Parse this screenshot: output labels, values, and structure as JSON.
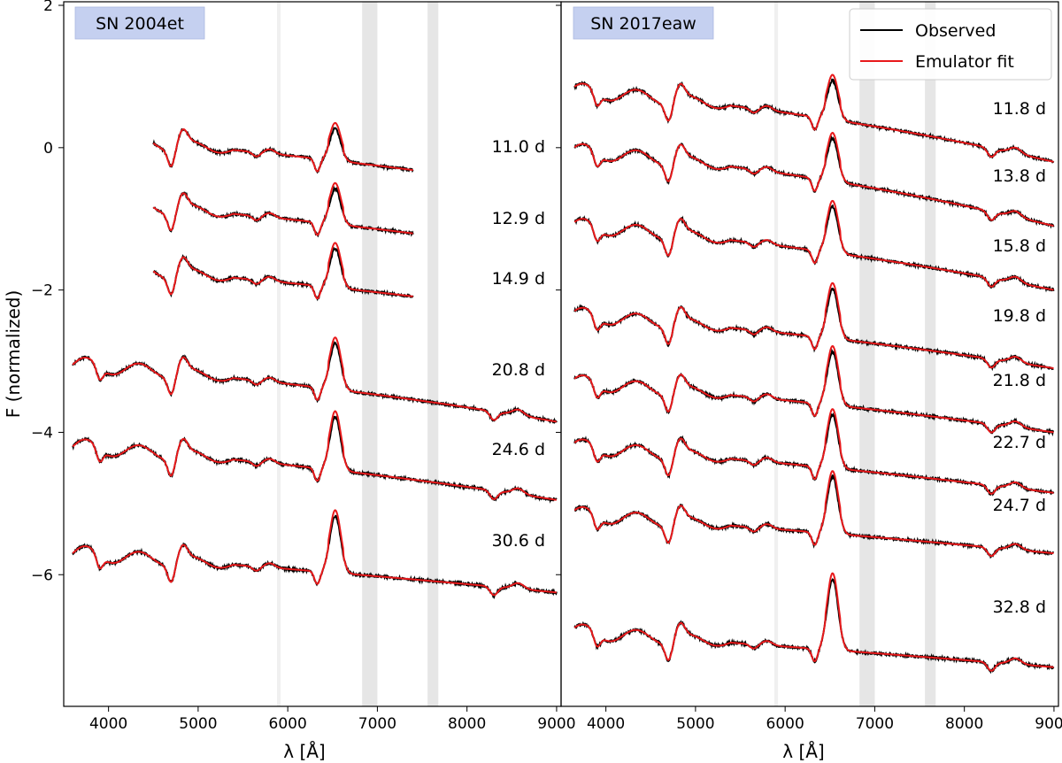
{
  "chart_data": {
    "type": "line",
    "ylabel": "F (normalized)",
    "y_tick_labels": [
      "2",
      "0",
      "−2",
      "−4",
      "−6"
    ],
    "y_tick_values": [
      2,
      0,
      -2,
      -4,
      -6
    ],
    "ylim": [
      -7.85,
      2.05
    ],
    "x_tick_labels": [
      "4000",
      "5000",
      "6000",
      "7000",
      "8000",
      "9000"
    ],
    "x_tick_values": [
      4000,
      5000,
      6000,
      7000,
      8000,
      9000
    ],
    "xlim": [
      3500,
      9050
    ],
    "xlabel_left": "λ [Å]",
    "xlabel_right": "λ [Å]",
    "telluric_bands": [
      [
        5880,
        5920
      ],
      [
        6830,
        7000
      ],
      [
        7560,
        7680
      ]
    ],
    "series": [
      {
        "name": "Observed",
        "color": "#000000"
      },
      {
        "name": "Emulator fit",
        "color": "#e8191b"
      }
    ],
    "legend": {
      "position": "top-right",
      "observed": "Observed",
      "emulator": "Emulator fit"
    },
    "panels": [
      {
        "name": "SN 2004et",
        "epochs": [
          {
            "label": "11.0 d",
            "offset": 0.0,
            "xmin": 4500,
            "xmax": 7400,
            "peak": 0.45,
            "tail": -0.25,
            "slope_end": -0.3
          },
          {
            "label": "12.9 d",
            "offset": -0.9,
            "xmin": 4500,
            "xmax": 7400,
            "peak": 0.5,
            "tail": -0.2,
            "slope_end": -0.28
          },
          {
            "label": "14.9 d",
            "offset": -1.8,
            "xmin": 4500,
            "xmax": 7400,
            "peak": 0.55,
            "tail": -0.2,
            "slope_end": -0.25
          },
          {
            "label": "20.8 d",
            "offset": -3.2,
            "xmin": 3600,
            "xmax": 9000,
            "peak": 0.65,
            "tail": -0.3,
            "slope_end": -0.35
          },
          {
            "label": "24.6 d",
            "offset": -4.35,
            "xmin": 3600,
            "xmax": 9000,
            "peak": 0.75,
            "tail": -0.2,
            "slope_end": -0.3
          },
          {
            "label": "30.6 d",
            "offset": -5.85,
            "xmin": 3600,
            "xmax": 9000,
            "peak": 0.8,
            "tail": 0.05,
            "slope_end": -0.1
          }
        ]
      },
      {
        "name": "SN 2017eaw",
        "epochs": [
          {
            "label": "11.8 d",
            "offset": 0.65,
            "xmin": 3650,
            "xmax": 9000,
            "peak": 0.55,
            "tail": -0.45,
            "slope_end": -0.55
          },
          {
            "label": "13.8 d",
            "offset": -0.2,
            "xmin": 3650,
            "xmax": 9000,
            "peak": 0.6,
            "tail": -0.55,
            "slope_end": -0.6
          },
          {
            "label": "15.8 d",
            "offset": -1.25,
            "xmin": 3650,
            "xmax": 9000,
            "peak": 0.65,
            "tail": -0.4,
            "slope_end": -0.45
          },
          {
            "label": "19.8 d",
            "offset": -2.5,
            "xmin": 3650,
            "xmax": 9000,
            "peak": 0.7,
            "tail": -0.25,
            "slope_end": -0.3
          },
          {
            "label": "21.8 d",
            "offset": -3.45,
            "xmin": 3650,
            "xmax": 9000,
            "peak": 0.75,
            "tail": -0.2,
            "slope_end": -0.25
          },
          {
            "label": "22.7 d",
            "offset": -4.35,
            "xmin": 3650,
            "xmax": 9000,
            "peak": 0.75,
            "tail": -0.15,
            "slope_end": -0.2
          },
          {
            "label": "24.7 d",
            "offset": -5.3,
            "xmin": 3650,
            "xmax": 9000,
            "peak": 0.8,
            "tail": -0.05,
            "slope_end": -0.1
          },
          {
            "label": "32.8 d",
            "offset": -6.95,
            "xmin": 3650,
            "xmax": 9000,
            "peak": 1.0,
            "tail": 0.1,
            "slope_end": -0.05
          }
        ]
      }
    ]
  }
}
